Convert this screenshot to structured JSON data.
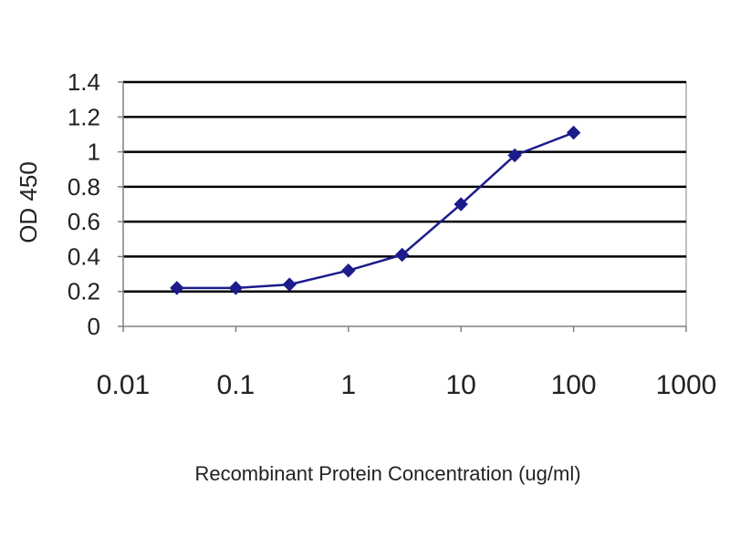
{
  "chart_data": {
    "type": "line",
    "title": "",
    "xlabel": "Recombinant Protein Concentration (ug/ml)",
    "ylabel": "OD 450",
    "x_scale": "log",
    "xlim": [
      0.01,
      1000
    ],
    "ylim": [
      0,
      1.4
    ],
    "x_ticks": [
      "0.01",
      "0.1",
      "1",
      "10",
      "100",
      "1000"
    ],
    "y_ticks": [
      "0",
      "0.2",
      "0.4",
      "0.6",
      "0.8",
      "1",
      "1.2",
      "1.4"
    ],
    "grid": "horizontal",
    "series": [
      {
        "x": [
          0.03,
          0.1,
          0.3,
          1,
          3,
          10,
          30,
          100
        ],
        "y": [
          0.22,
          0.22,
          0.24,
          0.32,
          0.41,
          0.7,
          0.98,
          1.11
        ]
      }
    ],
    "colors": {
      "series": "#1c1c8c",
      "grid": "#000000",
      "axis": "#808080"
    }
  }
}
